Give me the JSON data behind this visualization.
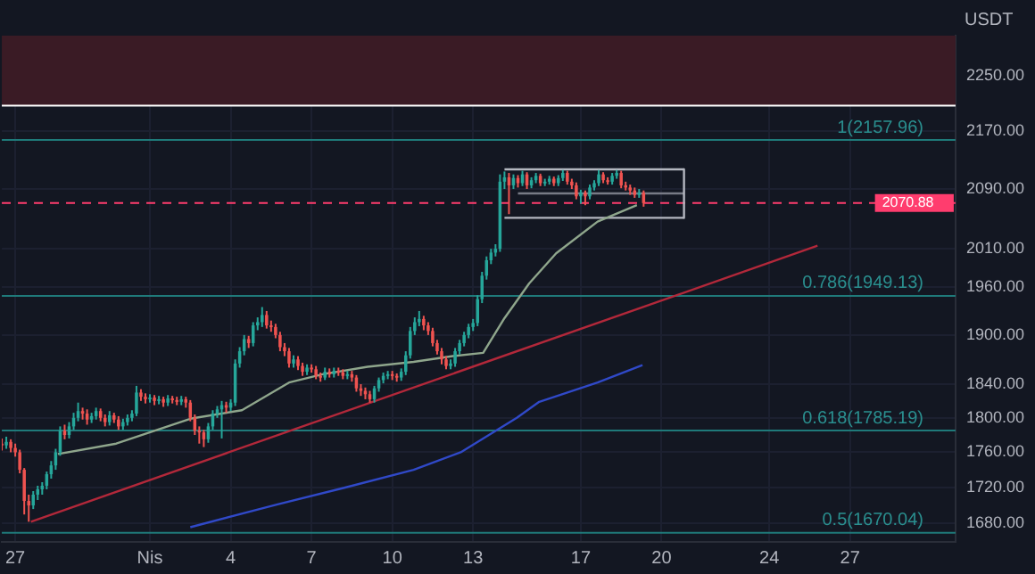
{
  "chart_data": {
    "type": "candlestick",
    "ylabel": "USDT",
    "log": true,
    "grid": true,
    "legend": false,
    "xlim": [
      "--03-26T12:00",
      "--04-30T22:00"
    ],
    "xticks": [
      {
        "value": "--03-27",
        "label": "27"
      },
      {
        "value": "--04-01",
        "label": "Nis"
      },
      {
        "value": "--04-04",
        "label": "4"
      },
      {
        "value": "--04-07",
        "label": "7"
      },
      {
        "value": "--04-10",
        "label": "10"
      },
      {
        "value": "--04-13",
        "label": "13"
      },
      {
        "value": "--04-17",
        "label": "17"
      },
      {
        "value": "--04-20",
        "label": "20"
      },
      {
        "value": "--04-24",
        "label": "24"
      },
      {
        "value": "--04-27",
        "label": "27"
      }
    ],
    "ylim": [
      1660,
      2310
    ],
    "yticks": [
      {
        "value": 1680,
        "label": "1680.00"
      },
      {
        "value": 1720,
        "label": "1720.00"
      },
      {
        "value": 1760,
        "label": "1760.00"
      },
      {
        "value": 1800,
        "label": "1800.00"
      },
      {
        "value": 1840,
        "label": "1840.00"
      },
      {
        "value": 1900,
        "label": "1900.00"
      },
      {
        "value": 1960,
        "label": "1960.00"
      },
      {
        "value": 2010,
        "label": "2010.00"
      },
      {
        "value": 2090,
        "label": "2090.00"
      },
      {
        "value": 2170,
        "label": "2170.00"
      },
      {
        "value": 2250,
        "label": "2250.00"
      }
    ],
    "x": [
      "--03-26T12:00",
      "--03-26T16:00",
      "--03-26T20:00",
      "--03-27T00:00",
      "--03-27T04:00",
      "--03-27T08:00",
      "--03-27T12:00",
      "--03-27T16:00",
      "--03-27T20:00",
      "--03-28T00:00",
      "--03-28T04:00",
      "--03-28T08:00",
      "--03-28T12:00",
      "--03-28T16:00",
      "--03-28T20:00",
      "--03-29T00:00",
      "--03-29T04:00",
      "--03-29T08:00",
      "--03-29T12:00",
      "--03-29T16:00",
      "--03-29T20:00",
      "--03-30T00:00",
      "--03-30T04:00",
      "--03-30T08:00",
      "--03-30T12:00",
      "--03-30T16:00",
      "--03-30T20:00",
      "--03-31T00:00",
      "--03-31T04:00",
      "--03-31T08:00",
      "--03-31T12:00",
      "--03-31T16:00",
      "--03-31T20:00",
      "--04-01T00:00",
      "--04-01T04:00",
      "--04-01T08:00",
      "--04-01T12:00",
      "--04-01T16:00",
      "--04-01T20:00",
      "--04-02T00:00",
      "--04-02T04:00",
      "--04-02T08:00",
      "--04-02T12:00",
      "--04-02T16:00",
      "--04-02T20:00",
      "--04-03T00:00",
      "--04-03T04:00",
      "--04-03T08:00",
      "--04-03T12:00",
      "--04-03T16:00",
      "--04-03T20:00",
      "--04-04T00:00",
      "--04-04T04:00",
      "--04-04T08:00",
      "--04-04T12:00",
      "--04-04T16:00",
      "--04-04T20:00",
      "--04-05T00:00",
      "--04-05T04:00",
      "--04-05T08:00",
      "--04-05T12:00",
      "--04-05T16:00",
      "--04-05T20:00",
      "--04-06T00:00",
      "--04-06T04:00",
      "--04-06T08:00",
      "--04-06T12:00",
      "--04-06T16:00",
      "--04-06T20:00",
      "--04-07T00:00",
      "--04-07T04:00",
      "--04-07T08:00",
      "--04-07T12:00",
      "--04-07T16:00",
      "--04-07T20:00",
      "--04-08T00:00",
      "--04-08T04:00",
      "--04-08T08:00",
      "--04-08T12:00",
      "--04-08T16:00",
      "--04-08T20:00",
      "--04-09T00:00",
      "--04-09T04:00",
      "--04-09T08:00",
      "--04-09T12:00",
      "--04-09T16:00",
      "--04-09T20:00",
      "--04-10T00:00",
      "--04-10T04:00",
      "--04-10T08:00",
      "--04-10T12:00",
      "--04-10T16:00",
      "--04-10T20:00",
      "--04-11T00:00",
      "--04-11T04:00",
      "--04-11T08:00",
      "--04-11T12:00",
      "--04-11T16:00",
      "--04-11T20:00",
      "--04-12T00:00",
      "--04-12T04:00",
      "--04-12T08:00",
      "--04-12T12:00",
      "--04-12T16:00",
      "--04-12T20:00",
      "--04-13T00:00",
      "--04-13T04:00",
      "--04-13T08:00",
      "--04-13T12:00",
      "--04-13T16:00",
      "--04-13T20:00",
      "--04-14T00:00",
      "--04-14T04:00",
      "--04-14T08:00",
      "--04-14T12:00",
      "--04-14T16:00",
      "--04-14T20:00",
      "--04-15T00:00",
      "--04-15T04:00",
      "--04-15T08:00",
      "--04-15T12:00",
      "--04-15T16:00",
      "--04-15T20:00",
      "--04-16T00:00",
      "--04-16T04:00",
      "--04-16T08:00",
      "--04-16T12:00",
      "--04-16T16:00",
      "--04-16T20:00",
      "--04-17T00:00",
      "--04-17T04:00",
      "--04-17T08:00",
      "--04-17T12:00",
      "--04-17T16:00",
      "--04-17T20:00",
      "--04-18T00:00",
      "--04-18T04:00",
      "--04-18T08:00",
      "--04-18T12:00",
      "--04-18T16:00",
      "--04-18T20:00",
      "--04-19T00:00",
      "--04-19T04:00",
      "--04-19T08:00"
    ],
    "ohlc": [
      [
        1770,
        1776,
        1762,
        1768
      ],
      [
        1768,
        1778,
        1764,
        1772
      ],
      [
        1772,
        1775,
        1760,
        1765
      ],
      [
        1765,
        1770,
        1755,
        1760
      ],
      [
        1760,
        1763,
        1736,
        1740
      ],
      [
        1740,
        1742,
        1690,
        1705
      ],
      [
        1705,
        1712,
        1682,
        1700
      ],
      [
        1700,
        1716,
        1696,
        1712
      ],
      [
        1712,
        1722,
        1706,
        1718
      ],
      [
        1718,
        1726,
        1712,
        1722
      ],
      [
        1722,
        1738,
        1718,
        1735
      ],
      [
        1735,
        1750,
        1730,
        1745
      ],
      [
        1745,
        1764,
        1740,
        1760
      ],
      [
        1760,
        1790,
        1756,
        1785
      ],
      [
        1785,
        1792,
        1775,
        1780
      ],
      [
        1780,
        1795,
        1776,
        1790
      ],
      [
        1790,
        1806,
        1786,
        1800
      ],
      [
        1800,
        1818,
        1796,
        1808
      ],
      [
        1808,
        1812,
        1798,
        1805
      ],
      [
        1805,
        1810,
        1792,
        1798
      ],
      [
        1798,
        1806,
        1794,
        1802
      ],
      [
        1802,
        1812,
        1798,
        1808
      ],
      [
        1808,
        1811,
        1796,
        1800
      ],
      [
        1800,
        1804,
        1790,
        1795
      ],
      [
        1795,
        1808,
        1791,
        1803
      ],
      [
        1803,
        1806,
        1794,
        1798
      ],
      [
        1798,
        1802,
        1786,
        1790
      ],
      [
        1790,
        1799,
        1786,
        1795
      ],
      [
        1795,
        1804,
        1791,
        1800
      ],
      [
        1800,
        1809,
        1796,
        1805
      ],
      [
        1805,
        1838,
        1802,
        1830
      ],
      [
        1830,
        1834,
        1820,
        1825
      ],
      [
        1825,
        1829,
        1817,
        1822
      ],
      [
        1822,
        1828,
        1818,
        1824
      ],
      [
        1824,
        1827,
        1815,
        1820
      ],
      [
        1820,
        1826,
        1816,
        1822
      ],
      [
        1822,
        1825,
        1813,
        1818
      ],
      [
        1818,
        1827,
        1814,
        1823
      ],
      [
        1823,
        1826,
        1817,
        1821
      ],
      [
        1821,
        1825,
        1815,
        1819
      ],
      [
        1819,
        1826,
        1815,
        1822
      ],
      [
        1822,
        1825,
        1812,
        1818
      ],
      [
        1818,
        1821,
        1796,
        1800
      ],
      [
        1800,
        1804,
        1780,
        1785
      ],
      [
        1785,
        1790,
        1770,
        1783
      ],
      [
        1783,
        1786,
        1766,
        1775
      ],
      [
        1775,
        1794,
        1771,
        1790
      ],
      [
        1790,
        1809,
        1786,
        1805
      ],
      [
        1805,
        1814,
        1800,
        1810
      ],
      [
        1810,
        1820,
        1776,
        1815
      ],
      [
        1815,
        1819,
        1806,
        1812
      ],
      [
        1812,
        1822,
        1808,
        1818
      ],
      [
        1818,
        1870,
        1814,
        1865
      ],
      [
        1865,
        1885,
        1860,
        1880
      ],
      [
        1880,
        1900,
        1875,
        1895
      ],
      [
        1895,
        1899,
        1884,
        1890
      ],
      [
        1890,
        1916,
        1886,
        1912
      ],
      [
        1912,
        1922,
        1906,
        1916
      ],
      [
        1916,
        1935,
        1910,
        1925
      ],
      [
        1925,
        1930,
        1908,
        1912
      ],
      [
        1912,
        1918,
        1904,
        1910
      ],
      [
        1910,
        1914,
        1896,
        1900
      ],
      [
        1900,
        1904,
        1880,
        1885
      ],
      [
        1885,
        1890,
        1874,
        1880
      ],
      [
        1880,
        1884,
        1860,
        1865
      ],
      [
        1865,
        1875,
        1860,
        1870
      ],
      [
        1870,
        1874,
        1857,
        1862
      ],
      [
        1862,
        1866,
        1850,
        1855
      ],
      [
        1855,
        1864,
        1851,
        1860
      ],
      [
        1860,
        1864,
        1854,
        1858
      ],
      [
        1858,
        1862,
        1846,
        1850
      ],
      [
        1850,
        1854,
        1843,
        1848
      ],
      [
        1848,
        1860,
        1845,
        1855
      ],
      [
        1855,
        1859,
        1848,
        1852
      ],
      [
        1852,
        1860,
        1848,
        1856
      ],
      [
        1856,
        1860,
        1850,
        1854
      ],
      [
        1854,
        1858,
        1846,
        1850
      ],
      [
        1850,
        1856,
        1846,
        1852
      ],
      [
        1852,
        1856,
        1843,
        1848
      ],
      [
        1848,
        1851,
        1831,
        1835
      ],
      [
        1835,
        1840,
        1826,
        1832
      ],
      [
        1832,
        1836,
        1822,
        1828
      ],
      [
        1828,
        1832,
        1818,
        1822
      ],
      [
        1822,
        1838,
        1818,
        1835
      ],
      [
        1835,
        1848,
        1831,
        1845
      ],
      [
        1845,
        1854,
        1841,
        1850
      ],
      [
        1850,
        1856,
        1846,
        1852
      ],
      [
        1852,
        1856,
        1845,
        1850
      ],
      [
        1850,
        1853,
        1843,
        1848
      ],
      [
        1848,
        1859,
        1844,
        1855
      ],
      [
        1855,
        1880,
        1851,
        1875
      ],
      [
        1875,
        1910,
        1871,
        1905
      ],
      [
        1905,
        1922,
        1900,
        1916
      ],
      [
        1916,
        1930,
        1911,
        1920
      ],
      [
        1920,
        1924,
        1906,
        1912
      ],
      [
        1912,
        1916,
        1900,
        1905
      ],
      [
        1905,
        1909,
        1886,
        1890
      ],
      [
        1890,
        1894,
        1876,
        1880
      ],
      [
        1880,
        1884,
        1864,
        1870
      ],
      [
        1870,
        1874,
        1858,
        1862
      ],
      [
        1862,
        1870,
        1858,
        1865
      ],
      [
        1865,
        1884,
        1861,
        1880
      ],
      [
        1880,
        1894,
        1876,
        1890
      ],
      [
        1890,
        1904,
        1886,
        1900
      ],
      [
        1900,
        1914,
        1896,
        1910
      ],
      [
        1910,
        1920,
        1905,
        1915
      ],
      [
        1915,
        1950,
        1911,
        1945
      ],
      [
        1945,
        1980,
        1940,
        1975
      ],
      [
        1975,
        2000,
        1970,
        1995
      ],
      [
        1995,
        2010,
        1990,
        2005
      ],
      [
        2005,
        2016,
        2000,
        2010
      ],
      [
        2010,
        2110,
        2006,
        2100
      ],
      [
        2100,
        2114,
        2090,
        2106
      ],
      [
        2106,
        2112,
        2056,
        2095
      ],
      [
        2095,
        2110,
        2090,
        2105
      ],
      [
        2105,
        2109,
        2092,
        2098
      ],
      [
        2098,
        2115,
        2094,
        2110
      ],
      [
        2110,
        2113,
        2090,
        2095
      ],
      [
        2095,
        2106,
        2091,
        2102
      ],
      [
        2102,
        2112,
        2098,
        2108
      ],
      [
        2108,
        2111,
        2094,
        2098
      ],
      [
        2098,
        2104,
        2094,
        2100
      ],
      [
        2100,
        2108,
        2096,
        2104
      ],
      [
        2104,
        2107,
        2094,
        2098
      ],
      [
        2098,
        2109,
        2094,
        2105
      ],
      [
        2105,
        2116,
        2101,
        2112
      ],
      [
        2112,
        2115,
        2096,
        2100
      ],
      [
        2100,
        2104,
        2090,
        2095
      ],
      [
        2095,
        2099,
        2076,
        2080
      ],
      [
        2080,
        2089,
        2070,
        2085
      ],
      [
        2085,
        2088,
        2068,
        2080
      ],
      [
        2080,
        2096,
        2076,
        2092
      ],
      [
        2092,
        2102,
        2088,
        2098
      ],
      [
        2098,
        2116,
        2094,
        2110
      ],
      [
        2110,
        2113,
        2098,
        2102
      ],
      [
        2102,
        2106,
        2096,
        2100
      ],
      [
        2100,
        2112,
        2096,
        2108
      ],
      [
        2108,
        2116,
        2104,
        2112
      ],
      [
        2112,
        2115,
        2091,
        2095
      ],
      [
        2095,
        2100,
        2088,
        2092
      ],
      [
        2092,
        2096,
        2082,
        2088
      ],
      [
        2088,
        2092,
        2078,
        2082
      ],
      [
        2082,
        2090,
        2078,
        2085
      ],
      [
        2085,
        2088,
        2066,
        2070.88
      ]
    ],
    "series": [
      {
        "type": "line",
        "color": "#8fa68c",
        "x": [
          "--03-28T14:00",
          "--03-30T18:00",
          "--04-02T12:00",
          "--04-04T10:00",
          "--04-06T04:00",
          "--04-07T10:00",
          "--04-09T02:00",
          "--04-10T19:00",
          "--04-12T06:00",
          "--04-13T09:00",
          "--04-14T04:00",
          "--04-15T02:00",
          "--04-16T02:00",
          "--04-17T15:00",
          "--04-19T02:00"
        ],
        "values": [
          1758,
          1770,
          1799,
          1809,
          1842,
          1852,
          1861,
          1867,
          1874,
          1878,
          1921,
          1965,
          2004,
          2046,
          2068
        ]
      },
      {
        "type": "line",
        "color": "#3049c8",
        "x": [
          "--04-02T12:00",
          "--04-05T17:00",
          "--04-08T06:00",
          "--04-10T19:00",
          "--04-12T13:00",
          "--04-14T15:00",
          "--04-15T11:00",
          "--04-17T15:00",
          "--04-19T07:00"
        ],
        "values": [
          1676,
          1701,
          1720,
          1740,
          1760,
          1800,
          1819,
          1842,
          1863
        ]
      },
      {
        "type": "line",
        "color": "#b2283a",
        "x": [
          "--03-27T14:00",
          "--04-25T19:00"
        ],
        "values": [
          1682,
          2014
        ]
      },
      {
        "type": "line",
        "color": "#b4b7c0",
        "x": [
          "--04-14T04:00",
          "--04-20T20:00"
        ],
        "values": [
          2117,
          2117
        ]
      },
      {
        "type": "line",
        "color": "#b4b7c0",
        "x": [
          "--04-14T04:00",
          "--04-20T20:00"
        ],
        "values": [
          2051,
          2051
        ]
      },
      {
        "type": "line",
        "color": "#b4b7c0",
        "x": [
          "--04-20T20:00",
          "--04-20T20:00"
        ],
        "values": [
          2117,
          2051
        ]
      },
      {
        "type": "line",
        "color": "#787b86",
        "x": [
          "--04-14T16:00",
          "--04-20T20:00"
        ],
        "values": [
          2084,
          2084
        ]
      }
    ],
    "ref_lines": [
      {
        "axis": "y",
        "value": 2157.96,
        "label": "1(2157.96)",
        "color": "#1f7a7a"
      },
      {
        "axis": "y",
        "value": 1949.13,
        "label": "0.786(1949.13)",
        "color": "#1f7a7a"
      },
      {
        "axis": "y",
        "value": 1785.19,
        "label": "0.618(1785.19)",
        "color": "#1f7a7a"
      },
      {
        "axis": "y",
        "value": 1670.04,
        "label": "0.5(1670.04)",
        "color": "#1f7a7a"
      },
      {
        "axis": "y",
        "value": 2207,
        "color": "#ffffff"
      },
      {
        "axis": "y",
        "value": 2070.88,
        "label": "2070.88",
        "color": "#ff3d6e",
        "line_style": "dashed"
      }
    ],
    "bands": [
      {
        "axis": "y",
        "from": 2207,
        "to": 2310,
        "color": "#3a1b25"
      }
    ]
  }
}
